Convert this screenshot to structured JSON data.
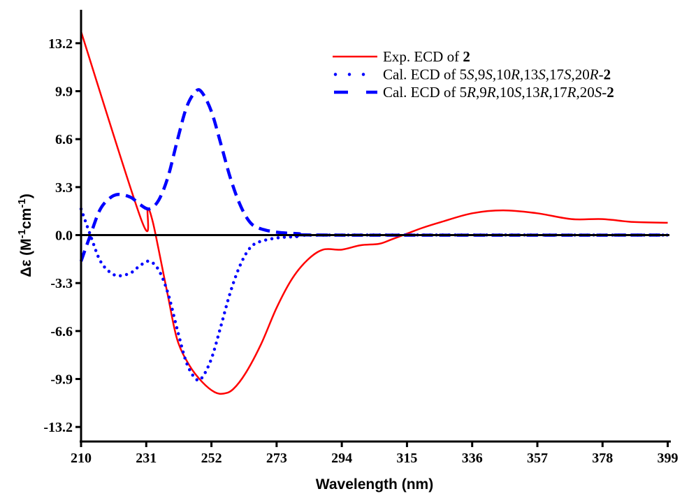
{
  "chart_data": {
    "type": "line",
    "title": "",
    "xlabel": "Wavelength (nm)",
    "ylabel": {
      "prefix": "Δε (M",
      "sup1": "-1",
      "mid": "cm",
      "sup2": "-1",
      "suffix": ")"
    },
    "xlim": [
      210,
      400
    ],
    "ylim": [
      -14.2,
      15.5
    ],
    "xticks": [
      210,
      231,
      252,
      273,
      294,
      315,
      336,
      357,
      378,
      399
    ],
    "xtick_labels": [
      "210",
      "231",
      "252",
      "273",
      "294",
      "315",
      "336",
      "357",
      "378",
      "399"
    ],
    "yticks": [
      13.2,
      9.9,
      6.6,
      3.3,
      0.0,
      -3.3,
      -6.6,
      -9.9,
      -13.2
    ],
    "ytick_labels": [
      "13.2",
      "9.9",
      "6.6",
      "3.3",
      "0.0",
      "-3.3",
      "-6.6",
      "-9.9",
      "-13.2"
    ],
    "zero_line": true,
    "grid": false,
    "legend_position": "top-right",
    "series": [
      {
        "name": "Exp. ECD of 2",
        "legend": [
          {
            "t": "Exp. ECD of "
          },
          {
            "t": "2",
            "b": true
          }
        ],
        "color": "#ff0000",
        "style": "solid",
        "x": [
          210,
          229.5,
          231.5,
          233,
          235,
          238,
          241,
          245,
          249,
          253,
          256,
          259,
          263,
          268,
          273,
          278,
          283,
          288,
          294,
          300,
          306,
          310,
          315,
          320,
          326,
          336,
          346,
          357,
          368,
          378,
          388,
          399
        ],
        "y": [
          14.0,
          1.0,
          1.8,
          1.0,
          -1.0,
          -4.2,
          -7.2,
          -9.0,
          -10.1,
          -10.8,
          -10.9,
          -10.6,
          -9.5,
          -7.5,
          -5.0,
          -3.0,
          -1.7,
          -1.0,
          -1.0,
          -0.7,
          -0.6,
          -0.3,
          0.1,
          0.5,
          0.9,
          1.5,
          1.7,
          1.5,
          1.1,
          1.1,
          0.9,
          0.85
        ]
      },
      {
        "name": "Cal. ECD of 5S,9S,10R,13S,17S,20R-2",
        "legend": [
          {
            "t": "Cal. ECD of 5"
          },
          {
            "t": "S",
            "i": true
          },
          {
            "t": ",9"
          },
          {
            "t": "S",
            "i": true
          },
          {
            "t": ",10"
          },
          {
            "t": "R",
            "i": true
          },
          {
            "t": ",13"
          },
          {
            "t": "S",
            "i": true
          },
          {
            "t": ",17"
          },
          {
            "t": "S",
            "i": true
          },
          {
            "t": ",20"
          },
          {
            "t": "R",
            "i": true
          },
          {
            "t": "-"
          },
          {
            "t": "2",
            "b": true
          }
        ],
        "color": "#0000ff",
        "style": "dotted",
        "x": [
          210,
          213,
          216,
          219,
          222,
          226,
          229,
          232,
          235,
          238,
          241,
          244,
          247,
          249,
          252,
          255,
          258,
          261,
          264,
          267,
          273,
          280,
          290,
          399
        ],
        "y": [
          1.8,
          0.0,
          -1.7,
          -2.5,
          -2.8,
          -2.6,
          -2.1,
          -1.8,
          -2.4,
          -4.0,
          -6.5,
          -8.8,
          -9.9,
          -9.8,
          -8.5,
          -6.3,
          -4.0,
          -2.2,
          -1.0,
          -0.5,
          -0.2,
          -0.1,
          0.0,
          0.0
        ]
      },
      {
        "name": "Cal. ECD of 5R,9R,10S,13R,17R,20S-2",
        "legend": [
          {
            "t": "Cal. ECD of 5"
          },
          {
            "t": "R",
            "i": true
          },
          {
            "t": ",9"
          },
          {
            "t": "R",
            "i": true
          },
          {
            "t": ",10"
          },
          {
            "t": "S",
            "i": true
          },
          {
            "t": ",13"
          },
          {
            "t": "R",
            "i": true
          },
          {
            "t": ",17"
          },
          {
            "t": "R",
            "i": true
          },
          {
            "t": ",20"
          },
          {
            "t": "S",
            "i": true
          },
          {
            "t": "-"
          },
          {
            "t": "2",
            "b": true
          }
        ],
        "color": "#0000ff",
        "style": "dashed",
        "x": [
          210,
          213,
          216,
          219,
          222,
          226,
          229,
          232,
          235,
          238,
          241,
          244,
          247,
          249,
          252,
          255,
          258,
          261,
          264,
          267,
          273,
          280,
          290,
          399
        ],
        "y": [
          -1.8,
          0.0,
          1.7,
          2.5,
          2.8,
          2.6,
          2.1,
          1.8,
          2.4,
          4.0,
          6.5,
          8.8,
          9.9,
          9.8,
          8.5,
          6.3,
          4.0,
          2.2,
          1.0,
          0.5,
          0.2,
          0.1,
          0.0,
          0.0
        ]
      }
    ]
  }
}
